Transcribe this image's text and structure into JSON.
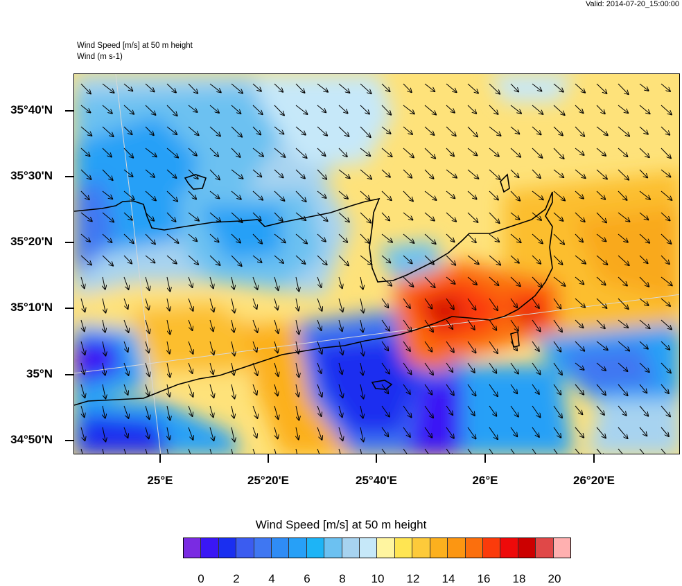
{
  "header": {
    "valid": "Valid: 2014-07-20_15:00:00",
    "title_line1": "Wind Speed [m/s] at 50 m height",
    "title_line2": "Wind   (m s-1)"
  },
  "axes": {
    "lat_labels": [
      "35°40'N",
      "35°30'N",
      "35°20'N",
      "35°10'N",
      "35°N",
      "34°50'N"
    ],
    "lon_labels": [
      "25°E",
      "25°20'E",
      "25°40'E",
      "26°E",
      "26°20'E"
    ]
  },
  "colorbar": {
    "title": "Wind Speed [m/s] at 50 m height",
    "labels": [
      "0",
      "2",
      "4",
      "6",
      "8",
      "10",
      "12",
      "14",
      "16",
      "18",
      "20"
    ],
    "colors": [
      "#7a2be2",
      "#3a17f5",
      "#1a2ff0",
      "#3b5cf0",
      "#3f77f2",
      "#2f8cf5",
      "#27a0f7",
      "#1db4f6",
      "#6cc1f1",
      "#a7d3f0",
      "#c6e8f9",
      "#fff5a0",
      "#ffe552",
      "#fdca3a",
      "#fcb01e",
      "#fc9612",
      "#fb6f0d",
      "#fb3b0b",
      "#ee0a0a",
      "#cc0000",
      "#e04848",
      "#ffb0b0"
    ]
  }
}
